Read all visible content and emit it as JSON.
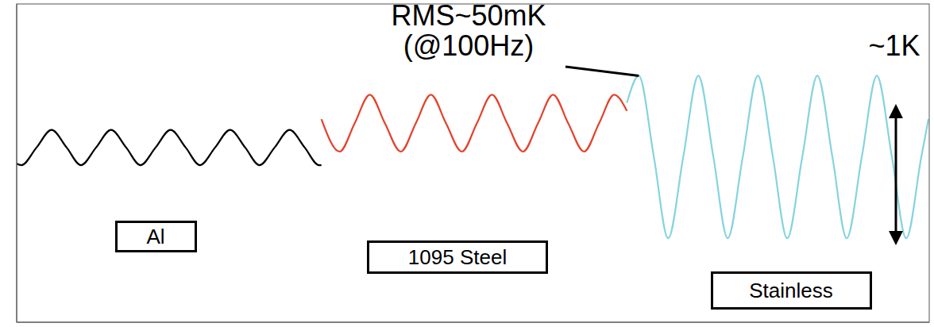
{
  "chart_data": {
    "type": "line",
    "xlim": [
      0,
      1150
    ],
    "ylim": [
      0,
      2.35
    ],
    "tick_labels": false,
    "grid": false,
    "series": [
      {
        "name": "Al",
        "color": "#000000",
        "x": [
          0,
          6,
          25,
          44,
          63,
          81,
          100,
          119,
          138,
          156,
          175,
          194,
          213,
          231,
          250,
          269,
          288,
          306,
          325,
          344,
          363,
          381,
          384
        ],
        "values": [
          1.17,
          1.16,
          1.29,
          1.42,
          1.29,
          1.16,
          1.29,
          1.42,
          1.29,
          1.16,
          1.29,
          1.42,
          1.29,
          1.16,
          1.29,
          1.42,
          1.29,
          1.16,
          1.29,
          1.42,
          1.29,
          1.16,
          1.16
        ]
      },
      {
        "name": "1095 Steel",
        "color": "#e4412b",
        "x": [
          384,
          407,
          426,
          445,
          464,
          484,
          503,
          522,
          541,
          561,
          580,
          599,
          618,
          638,
          657,
          676,
          695,
          715,
          734,
          753,
          769
        ],
        "values": [
          1.5,
          1.26,
          1.47,
          1.68,
          1.47,
          1.26,
          1.47,
          1.68,
          1.47,
          1.26,
          1.47,
          1.68,
          1.47,
          1.26,
          1.47,
          1.68,
          1.47,
          1.26,
          1.47,
          1.68,
          1.56
        ]
      },
      {
        "name": "Stainless",
        "color": "#86d4de",
        "x": [
          769,
          784,
          803,
          821,
          840,
          859,
          878,
          896,
          915,
          934,
          953,
          971,
          990,
          1009,
          1028,
          1046,
          1065,
          1084,
          1103,
          1121,
          1140,
          1149
        ],
        "values": [
          1.62,
          1.82,
          1.22,
          0.62,
          1.22,
          1.82,
          1.22,
          0.62,
          1.22,
          1.82,
          1.22,
          0.62,
          1.22,
          1.82,
          1.22,
          0.62,
          1.22,
          1.82,
          1.22,
          0.62,
          1.22,
          1.5
        ]
      }
    ],
    "annotations": [
      {
        "text": [
          "RMS~50mK",
          "(@100Hz)"
        ]
      },
      {
        "text": "~1K",
        "y": [
          0.59,
          1.59
        ]
      }
    ]
  }
}
